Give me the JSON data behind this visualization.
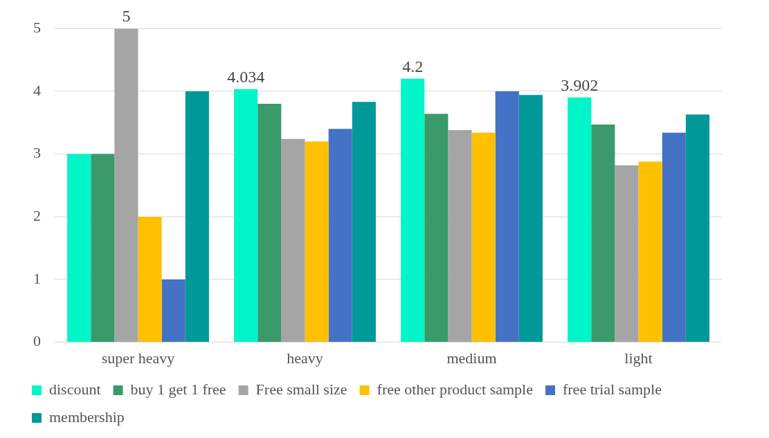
{
  "chart_data": {
    "type": "bar",
    "categories": [
      "super heavy",
      "heavy",
      "medium",
      "light"
    ],
    "series": [
      {
        "name": "discount",
        "color": "#00f5c8",
        "values": [
          3,
          4.034,
          4.2,
          3.902
        ],
        "value_labels": [
          null,
          "4.034",
          "4.2",
          "3.902"
        ]
      },
      {
        "name": "buy 1 get 1 free",
        "color": "#3a9a6a",
        "values": [
          3,
          3.8,
          3.64,
          3.47
        ]
      },
      {
        "name": "Free small size",
        "color": "#a5a5a5",
        "values": [
          5,
          3.24,
          3.38,
          2.82
        ],
        "value_labels": [
          "5",
          null,
          null,
          null
        ]
      },
      {
        "name": "free other product sample",
        "color": "#ffc000",
        "values": [
          2,
          3.2,
          3.34,
          2.88
        ]
      },
      {
        "name": "free trial sample",
        "color": "#4472c4",
        "values": [
          1,
          3.4,
          4.0,
          3.34
        ]
      },
      {
        "name": "membership",
        "color": "#009999",
        "values": [
          4,
          3.83,
          3.94,
          3.63
        ]
      }
    ],
    "ylim": [
      0,
      5
    ],
    "yticks": [
      0,
      1,
      2,
      3,
      4,
      5
    ],
    "grid": "y",
    "legend": "bottom"
  }
}
